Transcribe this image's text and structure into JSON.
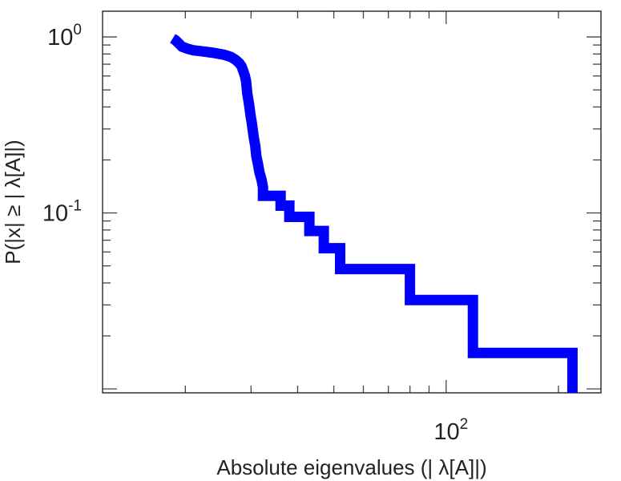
{
  "chart_data": {
    "type": "line",
    "title": "",
    "xlabel": "Absolute eigenvalues (|     λ[A]|)",
    "ylabel": "P(|x|  ≥ | λ[A]|)",
    "x_scale": "log",
    "y_scale": "log",
    "xlim": [
      12,
      260
    ],
    "ylim": [
      0.0095,
      1.4
    ],
    "grid": false,
    "legend": "none",
    "color": "#0000ff",
    "x_ticks": [
      {
        "base": "10",
        "exp": "2",
        "value": 100
      }
    ],
    "y_ticks": [
      {
        "base": "10",
        "exp": "0",
        "value": 1
      },
      {
        "base": "10",
        "exp": "-1",
        "value": 0.1
      }
    ],
    "series": [
      {
        "x": [
          18.5,
          18.8,
          19.2,
          19.6,
          20.2,
          21.0,
          22.0,
          23.0,
          24.0,
          25.5,
          26.5,
          27.3,
          27.9,
          28.3,
          28.6,
          28.9,
          29.1,
          29.2,
          29.3,
          29.5,
          29.7,
          29.9,
          30.1,
          30.3,
          30.5,
          30.8,
          31.0,
          31.3,
          31.6,
          32.0,
          32.3,
          32.3,
          36.0,
          36.0,
          38.0,
          38.0,
          43.0,
          43.0,
          47.0,
          47.0,
          52.0,
          52.0,
          80.0,
          80.0,
          118.0,
          118.0,
          218.0,
          218.0
        ],
        "y": [
          0.98,
          0.96,
          0.92,
          0.88,
          0.86,
          0.84,
          0.83,
          0.82,
          0.81,
          0.79,
          0.77,
          0.74,
          0.71,
          0.68,
          0.64,
          0.6,
          0.56,
          0.52,
          0.48,
          0.44,
          0.4,
          0.36,
          0.33,
          0.3,
          0.27,
          0.24,
          0.21,
          0.19,
          0.17,
          0.155,
          0.14,
          0.125,
          0.125,
          0.11,
          0.11,
          0.095,
          0.095,
          0.079,
          0.079,
          0.063,
          0.063,
          0.048,
          0.048,
          0.032,
          0.032,
          0.016,
          0.016,
          0.0095
        ]
      }
    ]
  }
}
